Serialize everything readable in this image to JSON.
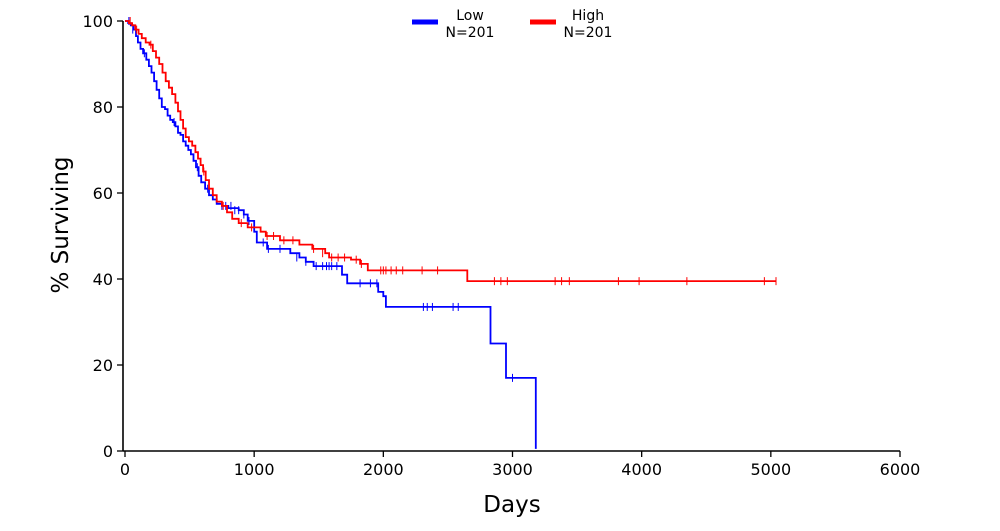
{
  "chart_data": {
    "type": "line",
    "title": "",
    "xlabel": "Days",
    "ylabel": "% Surviving",
    "xlim": [
      0,
      6000
    ],
    "ylim": [
      0,
      100
    ],
    "xticks": [
      0,
      1000,
      2000,
      3000,
      4000,
      5000,
      6000
    ],
    "yticks": [
      0,
      20,
      40,
      60,
      80,
      100
    ],
    "grid": false,
    "legend_position": "top-center",
    "series": [
      {
        "name": "Low",
        "n_label": "N=201",
        "color": "#0000ff",
        "steps": [
          [
            0,
            100
          ],
          [
            25,
            99.5
          ],
          [
            45,
            99
          ],
          [
            65,
            98
          ],
          [
            85,
            96.5
          ],
          [
            100,
            95
          ],
          [
            120,
            93.5
          ],
          [
            140,
            92.5
          ],
          [
            165,
            91
          ],
          [
            185,
            89.5
          ],
          [
            205,
            88
          ],
          [
            225,
            86
          ],
          [
            245,
            84
          ],
          [
            265,
            82
          ],
          [
            285,
            80
          ],
          [
            310,
            79.5
          ],
          [
            330,
            78
          ],
          [
            350,
            77
          ],
          [
            370,
            76.5
          ],
          [
            390,
            75.5
          ],
          [
            410,
            74
          ],
          [
            430,
            73.5
          ],
          [
            450,
            72
          ],
          [
            470,
            71
          ],
          [
            490,
            70
          ],
          [
            510,
            69
          ],
          [
            530,
            67.5
          ],
          [
            550,
            66
          ],
          [
            570,
            64
          ],
          [
            590,
            62.5
          ],
          [
            620,
            61
          ],
          [
            650,
            59.5
          ],
          [
            680,
            58.5
          ],
          [
            710,
            57.5
          ],
          [
            750,
            57
          ],
          [
            800,
            56.5
          ],
          [
            880,
            56
          ],
          [
            920,
            55
          ],
          [
            950,
            53.5
          ],
          [
            1000,
            51
          ],
          [
            1020,
            48.5
          ],
          [
            1100,
            47
          ],
          [
            1280,
            46
          ],
          [
            1350,
            45
          ],
          [
            1400,
            44
          ],
          [
            1460,
            43
          ],
          [
            1680,
            41
          ],
          [
            1720,
            39
          ],
          [
            1960,
            37
          ],
          [
            2000,
            36
          ],
          [
            2020,
            33.5
          ],
          [
            2830,
            25
          ],
          [
            2950,
            17
          ],
          [
            3180,
            0.5
          ]
        ],
        "censored": [
          [
            30,
            100
          ],
          [
            60,
            98
          ],
          [
            150,
            92.5
          ],
          [
            380,
            76.5
          ],
          [
            560,
            66
          ],
          [
            640,
            61
          ],
          [
            750,
            57
          ],
          [
            780,
            57
          ],
          [
            820,
            57
          ],
          [
            850,
            56
          ],
          [
            880,
            56
          ],
          [
            920,
            55
          ],
          [
            960,
            53.5
          ],
          [
            1070,
            48.5
          ],
          [
            1110,
            47
          ],
          [
            1200,
            47
          ],
          [
            1330,
            45
          ],
          [
            1400,
            44
          ],
          [
            1480,
            43
          ],
          [
            1530,
            43
          ],
          [
            1560,
            43
          ],
          [
            1580,
            43
          ],
          [
            1600,
            43
          ],
          [
            1640,
            43
          ],
          [
            1820,
            39
          ],
          [
            1900,
            39
          ],
          [
            1950,
            39
          ],
          [
            2310,
            33.5
          ],
          [
            2340,
            33.5
          ],
          [
            2380,
            33.5
          ],
          [
            2540,
            33.5
          ],
          [
            2580,
            33.5
          ],
          [
            3000,
            17
          ]
        ]
      },
      {
        "name": "High",
        "n_label": "N=201",
        "color": "#ff0000",
        "steps": [
          [
            0,
            100
          ],
          [
            30,
            99.5
          ],
          [
            55,
            99
          ],
          [
            80,
            98
          ],
          [
            105,
            97
          ],
          [
            130,
            96
          ],
          [
            160,
            95
          ],
          [
            190,
            94.5
          ],
          [
            215,
            93
          ],
          [
            240,
            91.5
          ],
          [
            265,
            90
          ],
          [
            290,
            88
          ],
          [
            315,
            86
          ],
          [
            340,
            84.5
          ],
          [
            365,
            83
          ],
          [
            390,
            81
          ],
          [
            410,
            79
          ],
          [
            430,
            77
          ],
          [
            450,
            75
          ],
          [
            470,
            73
          ],
          [
            495,
            72
          ],
          [
            520,
            71
          ],
          [
            545,
            69.5
          ],
          [
            565,
            68
          ],
          [
            585,
            66.5
          ],
          [
            605,
            65
          ],
          [
            625,
            63
          ],
          [
            650,
            61
          ],
          [
            680,
            59.5
          ],
          [
            710,
            58
          ],
          [
            750,
            57
          ],
          [
            790,
            55.5
          ],
          [
            830,
            54
          ],
          [
            880,
            53
          ],
          [
            950,
            52
          ],
          [
            1050,
            51
          ],
          [
            1090,
            50
          ],
          [
            1200,
            49
          ],
          [
            1350,
            48
          ],
          [
            1450,
            47
          ],
          [
            1550,
            46
          ],
          [
            1580,
            45
          ],
          [
            1750,
            44.5
          ],
          [
            1820,
            43.5
          ],
          [
            1880,
            42
          ],
          [
            2650,
            39.5
          ],
          [
            5040,
            39.5
          ]
        ],
        "censored": [
          [
            40,
            100
          ],
          [
            90,
            98
          ],
          [
            200,
            94.5
          ],
          [
            610,
            65
          ],
          [
            760,
            57
          ],
          [
            900,
            53
          ],
          [
            980,
            52
          ],
          [
            1100,
            50
          ],
          [
            1150,
            50
          ],
          [
            1230,
            49
          ],
          [
            1300,
            49
          ],
          [
            1460,
            47
          ],
          [
            1530,
            46
          ],
          [
            1600,
            45
          ],
          [
            1650,
            45
          ],
          [
            1700,
            45
          ],
          [
            1790,
            44.5
          ],
          [
            1830,
            43.5
          ],
          [
            1980,
            42
          ],
          [
            2000,
            42
          ],
          [
            2020,
            42
          ],
          [
            2060,
            42
          ],
          [
            2100,
            42
          ],
          [
            2150,
            42
          ],
          [
            2300,
            42
          ],
          [
            2420,
            42
          ],
          [
            2860,
            39.5
          ],
          [
            2910,
            39.5
          ],
          [
            2960,
            39.5
          ],
          [
            3330,
            39.5
          ],
          [
            3380,
            39.5
          ],
          [
            3440,
            39.5
          ],
          [
            3820,
            39.5
          ],
          [
            3980,
            39.5
          ],
          [
            4350,
            39.5
          ],
          [
            4950,
            39.5
          ],
          [
            5040,
            39.5
          ]
        ]
      }
    ]
  }
}
